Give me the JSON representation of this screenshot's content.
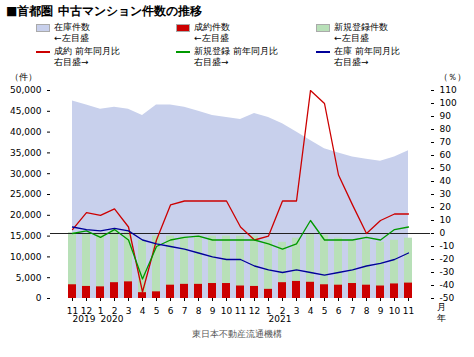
{
  "chart_data": {
    "type": "combo",
    "title": "■首都圏 中古マンション件数の推移",
    "source": "東日本不動産流通機構",
    "ylabel": "（件）",
    "y2label": "（％）",
    "categories": [
      "11",
      "12",
      "1",
      "2",
      "3",
      "4",
      "5",
      "6",
      "7",
      "8",
      "9",
      "10",
      "11",
      "12",
      "1",
      "2",
      "3",
      "4",
      "5",
      "6",
      "7",
      "8",
      "9",
      "10",
      "11"
    ],
    "year_labels": [
      {
        "text": "2019",
        "x": 0
      },
      {
        "text": "2020",
        "x": 2
      },
      {
        "text": "2021",
        "x": 14
      }
    ],
    "x_units": [
      "月",
      "年"
    ],
    "ylim": [
      0,
      50000
    ],
    "yticks": [
      0,
      {
        "value": 5000,
        "label": "5,000"
      },
      {
        "value": 10000,
        "label": "10,000"
      },
      {
        "value": 15000,
        "label": "15,000"
      },
      {
        "value": 20000,
        "label": "20,000"
      },
      {
        "value": 25000,
        "label": "25,000"
      },
      {
        "value": 30000,
        "label": "30,000"
      },
      {
        "value": 35000,
        "label": "35,000"
      },
      {
        "value": 40000,
        "label": "40,000"
      },
      {
        "value": 45000,
        "label": "45,000"
      },
      {
        "value": 50000,
        "label": "50,000"
      }
    ],
    "y2lim": [
      -50,
      110
    ],
    "y2ticks": [
      -50,
      -40,
      -30,
      -20,
      -10,
      0,
      10,
      20,
      30,
      40,
      50,
      60,
      70,
      80,
      90,
      100,
      110
    ],
    "grid": false,
    "reference_lines": [
      {
        "axis": "y2",
        "value": 0,
        "color": "#222222"
      }
    ],
    "series": [
      {
        "name": "在庫件数",
        "type": "area",
        "axis": "y",
        "color": "#c8d0ec",
        "axis_note": "←左目盛",
        "values": [
          47500,
          46500,
          45500,
          46000,
          45500,
          44000,
          46500,
          46500,
          46000,
          45000,
          44000,
          43500,
          43000,
          44500,
          43500,
          42000,
          40000,
          38000,
          36000,
          35000,
          34000,
          33500,
          33000,
          34000,
          35500
        ]
      },
      {
        "name": "成約件数",
        "type": "bar",
        "axis": "y",
        "color": "#cc0000",
        "axis_note": "←左目盛",
        "values": [
          3300,
          2900,
          2800,
          3800,
          4000,
          1400,
          1600,
          3200,
          3400,
          3400,
          3600,
          3600,
          3000,
          2900,
          2200,
          3800,
          4100,
          3900,
          3300,
          3200,
          3600,
          3200,
          3000,
          3500,
          3700
        ]
      },
      {
        "name": "新規登録件数",
        "type": "bar",
        "axis": "y",
        "color": "#b8e0b8",
        "axis_note": "←左目盛",
        "values": [
          15800,
          15500,
          15500,
          16500,
          16000,
          14000,
          15000,
          15000,
          14800,
          15000,
          15000,
          15000,
          15000,
          15000,
          14000,
          13500,
          14500,
          15500,
          15200,
          14500,
          13800,
          14000,
          13500,
          14000,
          14500
        ]
      },
      {
        "name": "成約 前年同月比",
        "type": "line",
        "axis": "y2",
        "color": "#cc0000",
        "axis_note": "右目盛→",
        "values": [
          3,
          16,
          14,
          19,
          5,
          -45,
          -5,
          22,
          25,
          25,
          25,
          25,
          5,
          -5,
          -2,
          25,
          25,
          110,
          100,
          45,
          22,
          0,
          10,
          15,
          15
        ]
      },
      {
        "name": "新規登録 前年同月比",
        "type": "line",
        "axis": "y2",
        "color": "#009900",
        "axis_note": "右目盛→",
        "values": [
          0,
          2,
          -3,
          3,
          -5,
          -35,
          -10,
          -5,
          -3,
          -2,
          -5,
          -5,
          -5,
          -5,
          -8,
          -12,
          -8,
          10,
          -5,
          -5,
          -5,
          -3,
          -5,
          3,
          5
        ]
      },
      {
        "name": "在庫 前年同月比",
        "type": "line",
        "axis": "y2",
        "color": "#000099",
        "axis_note": "右目盛→",
        "values": [
          5,
          3,
          2,
          4,
          2,
          -5,
          -8,
          -10,
          -12,
          -15,
          -18,
          -20,
          -20,
          -25,
          -28,
          -30,
          -28,
          -30,
          -32,
          -30,
          -28,
          -25,
          -23,
          -20,
          -15
        ]
      }
    ]
  }
}
